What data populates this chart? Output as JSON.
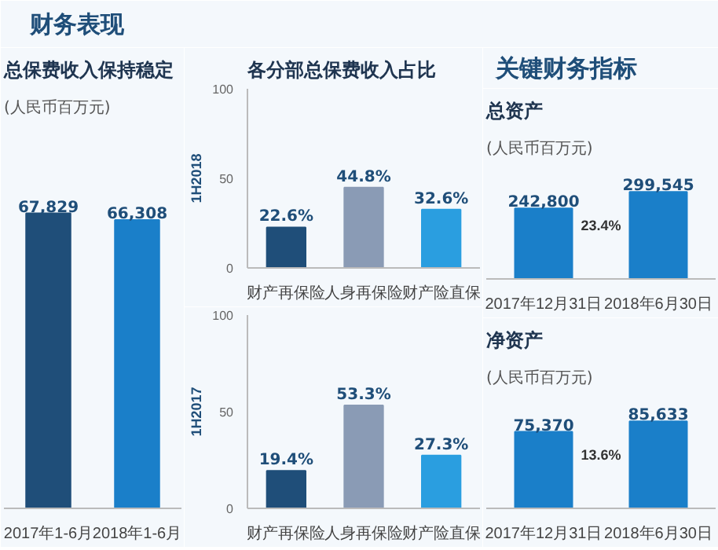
{
  "chart_data": [
    {
      "type": "other",
      "title": "财务表现"
    },
    {
      "type": "bar",
      "title": "总保费收入保持稳定",
      "subtitle": "(人民币百万元)",
      "categories": [
        "2017年1-6月",
        "2018年1-6月"
      ],
      "values": [
        67829,
        66308
      ],
      "value_labels": [
        "67,829",
        "66,308"
      ],
      "colors": [
        "#1f4e79",
        "#1a7fc9"
      ],
      "tick_labels": "x"
    },
    {
      "type": "bar",
      "title": "各分部总保费收入占比",
      "ylabel": "1H2018",
      "categories": [
        "财产再保险",
        "人身再保险",
        "财产险直保"
      ],
      "values": [
        22.6,
        44.8,
        32.6
      ],
      "value_labels": [
        "22.6%",
        "44.8%",
        "32.6%"
      ],
      "colors": [
        "#1f4e79",
        "#8a9bb5",
        "#2a9ee0"
      ],
      "ylim": [
        0,
        100
      ],
      "yticks": [
        0,
        50,
        100
      ]
    },
    {
      "type": "bar",
      "ylabel": "1H2017",
      "categories": [
        "财产再保险",
        "人身再保险",
        "财产险直保"
      ],
      "values": [
        19.4,
        53.3,
        27.3
      ],
      "value_labels": [
        "19.4%",
        "53.3%",
        "27.3%"
      ],
      "colors": [
        "#1f4e79",
        "#8a9bb5",
        "#2a9ee0"
      ],
      "ylim": [
        0,
        100
      ],
      "yticks": [
        0,
        50,
        100
      ]
    },
    {
      "type": "other",
      "title": "关键财务指标"
    },
    {
      "type": "bar",
      "title": "总资产",
      "subtitle": "(人民币百万元)",
      "categories": [
        "2017年12月31日",
        "2018年6月30日"
      ],
      "values": [
        242800,
        299545
      ],
      "value_labels": [
        "242,800",
        "299,545"
      ],
      "colors": [
        "#1a7fc9",
        "#1a7fc9"
      ],
      "tick_labels": "x",
      "annotations": [
        "23.4%"
      ]
    },
    {
      "type": "bar",
      "title": "净资产",
      "subtitle": "(人民币百万元)",
      "categories": [
        "2017年12月31日",
        "2018年6月30日"
      ],
      "values": [
        75370,
        85633
      ],
      "value_labels": [
        "75,370",
        "85,633"
      ],
      "colors": [
        "#1a7fc9",
        "#1a7fc9"
      ],
      "tick_labels": "x",
      "annotations": [
        "13.6%"
      ]
    }
  ]
}
